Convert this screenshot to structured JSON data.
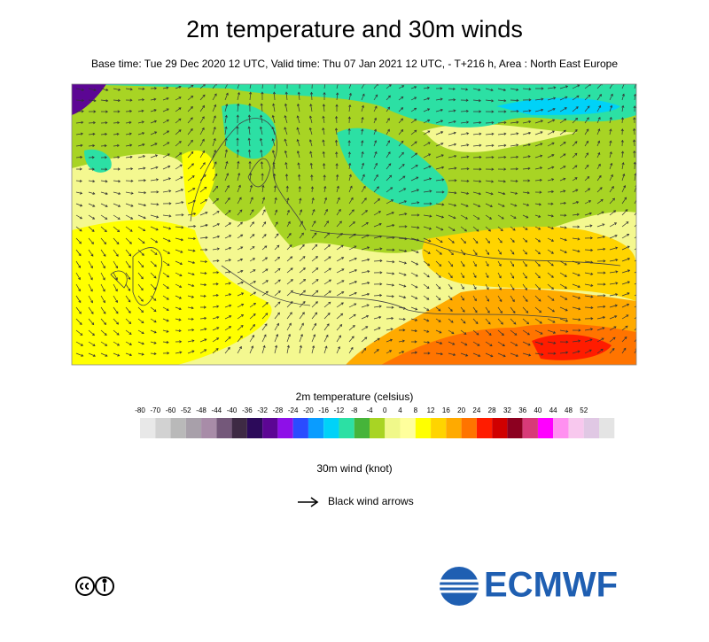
{
  "header": {
    "title": "2m temperature and 30m winds",
    "subtitle": "Base time: Tue 29 Dec 2020 12 UTC, Valid time: Thu 07 Jan 2021 12 UTC, - T+216 h, Area : North East Europe"
  },
  "legend": {
    "title": "2m temperature (celsius)",
    "ticks": [
      -80,
      -70,
      -60,
      -52,
      -48,
      -44,
      -40,
      -36,
      -32,
      -28,
      -24,
      -20,
      -16,
      -12,
      -8,
      -4,
      0,
      4,
      8,
      12,
      16,
      20,
      24,
      28,
      32,
      36,
      40,
      44,
      48,
      52
    ],
    "colors": [
      "#e8e8e8",
      "#d2d2d2",
      "#b9b9b9",
      "#a8a0aa",
      "#a88ca8",
      "#74587a",
      "#3e2a44",
      "#2c0a5a",
      "#5c0694",
      "#8e10e8",
      "#2a4cff",
      "#0a9cff",
      "#00d2f8",
      "#2ce0a4",
      "#46b43a",
      "#a8d424",
      "#f0f88a",
      "#ffff9c",
      "#ffff00",
      "#ffd400",
      "#ffaa00",
      "#ff7400",
      "#ff1c00",
      "#d00000",
      "#8c0020",
      "#d83a78",
      "#ff00ff",
      "#ff90f0",
      "#f8c8ee",
      "#e0c8e4",
      "#e4e4e4"
    ]
  },
  "wind_legend": {
    "title": "30m wind (knot)",
    "arrow_label": "Black wind arrows"
  },
  "logo": {
    "text": "ECMWF"
  }
}
